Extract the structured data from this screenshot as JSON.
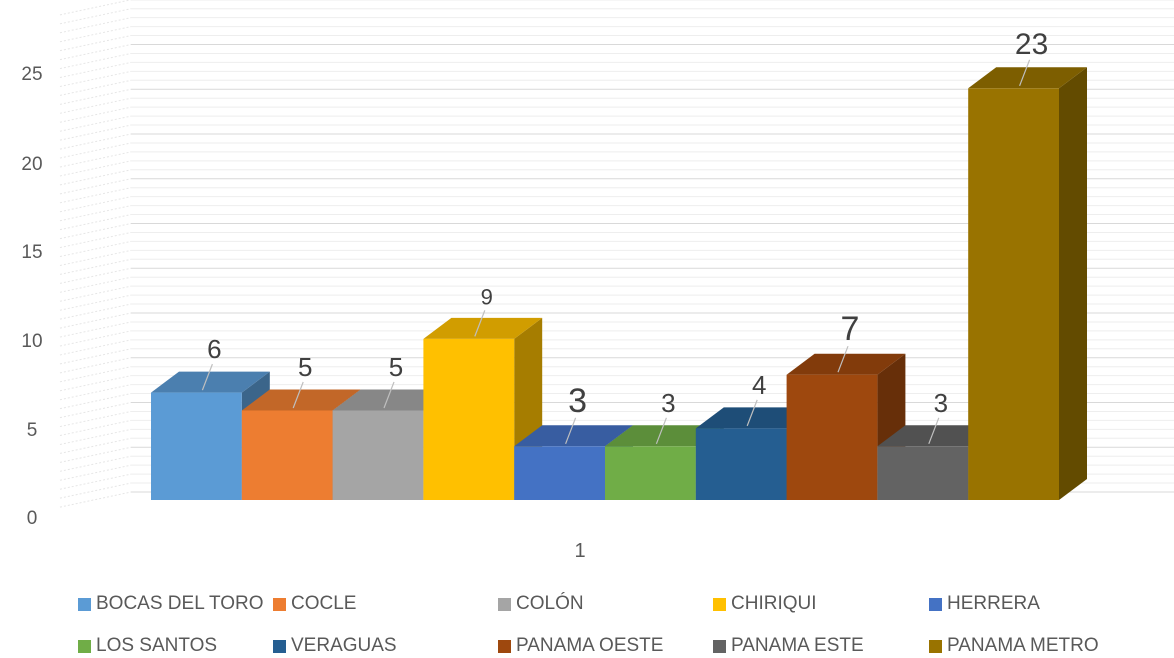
{
  "chart_data": {
    "type": "bar",
    "style": "3d-clustered-column",
    "categories": [
      "1"
    ],
    "series": [
      {
        "name": "BOCAS DEL TORO",
        "value": 6,
        "color": "#5B9BD5"
      },
      {
        "name": "COCLE",
        "value": 5,
        "color": "#ED7D31"
      },
      {
        "name": "COLÓN",
        "value": 5,
        "color": "#A5A5A5"
      },
      {
        "name": "CHIRIQUI",
        "value": 9,
        "color": "#FFC000"
      },
      {
        "name": "HERRERA",
        "value": 3,
        "color": "#4472C4"
      },
      {
        "name": "LOS SANTOS",
        "value": 3,
        "color": "#70AD47"
      },
      {
        "name": "VERAGUAS",
        "value": 4,
        "color": "#255E91"
      },
      {
        "name": "PANAMA OESTE",
        "value": 7,
        "color": "#9E480E"
      },
      {
        "name": "PANAMA ESTE",
        "value": 3,
        "color": "#636363"
      },
      {
        "name": "PANAMA METRO",
        "value": 23,
        "color": "#997300"
      }
    ],
    "yticks": [
      "0",
      "5",
      "10",
      "15",
      "20",
      "25"
    ],
    "ylim": [
      0,
      25
    ],
    "grid": true,
    "legend": "bottom",
    "xlabel": "",
    "ylabel": "",
    "title": ""
  }
}
